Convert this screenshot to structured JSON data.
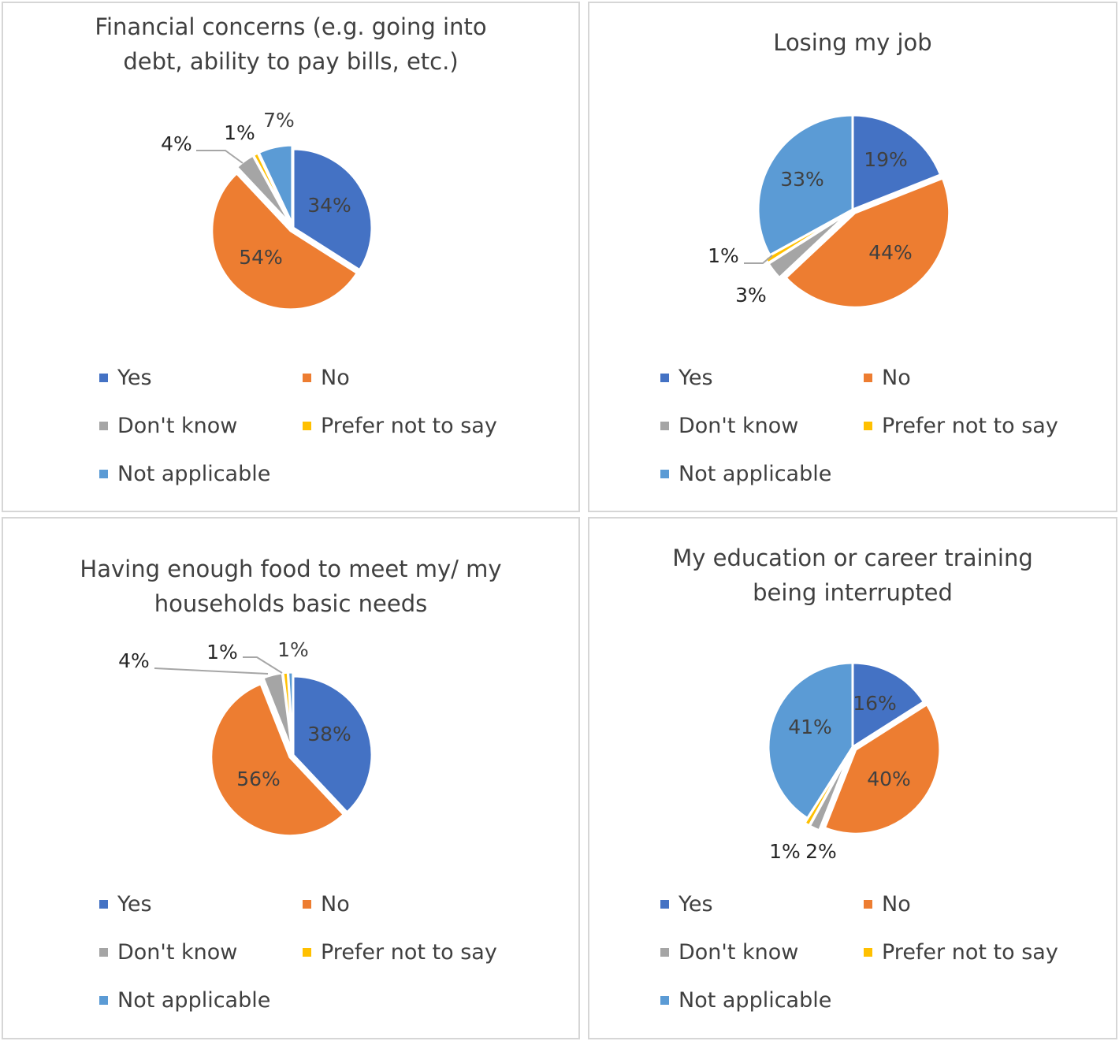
{
  "legend": [
    "Yes",
    "No",
    "Don't know",
    "Prefer not to say",
    "Not applicable"
  ],
  "colors": {
    "Yes": "#4472c4",
    "No": "#ed7d31",
    "Don't know": "#a5a5a5",
    "Prefer not to say": "#ffc000",
    "Not applicable": "#5b9bd5"
  },
  "chart_data": [
    {
      "type": "pie",
      "title": "Financial concerns (e.g. going into debt, ability to pay bills, etc.)",
      "title_lines": [
        "Financial concerns (e.g. going into",
        "debt, ability to pay bills, etc.)"
      ],
      "categories": [
        "Yes",
        "No",
        "Don't know",
        "Prefer not to say",
        "Not applicable"
      ],
      "values": [
        34,
        54,
        4,
        1,
        7
      ],
      "labels": [
        "34%",
        "54%",
        "4%",
        "1%",
        "7%"
      ]
    },
    {
      "type": "pie",
      "title": "Losing my job",
      "title_lines": [
        "Losing my job"
      ],
      "categories": [
        "Yes",
        "No",
        "Don't know",
        "Prefer not to say",
        "Not applicable"
      ],
      "values": [
        19,
        44,
        3,
        1,
        33
      ],
      "labels": [
        "19%",
        "44%",
        "3%",
        "1%",
        "33%"
      ]
    },
    {
      "type": "pie",
      "title": "Having enough food to meet my/ my households basic needs",
      "title_lines": [
        "Having enough food to meet my/ my",
        "households basic needs"
      ],
      "categories": [
        "Yes",
        "No",
        "Don't know",
        "Prefer not to say",
        "Not applicable"
      ],
      "values": [
        38,
        56,
        4,
        1,
        1
      ],
      "labels": [
        "38%",
        "56%",
        "4%",
        "1%",
        "1%"
      ]
    },
    {
      "type": "pie",
      "title": "My education or career training being interrupted",
      "title_lines": [
        "My education or career training",
        "being interrupted"
      ],
      "categories": [
        "Yes",
        "No",
        "Don't know",
        "Prefer not to say",
        "Not applicable"
      ],
      "values": [
        16,
        40,
        2,
        1,
        41
      ],
      "labels": [
        "16%",
        "40%",
        "2%",
        "1%",
        "41%"
      ]
    }
  ]
}
